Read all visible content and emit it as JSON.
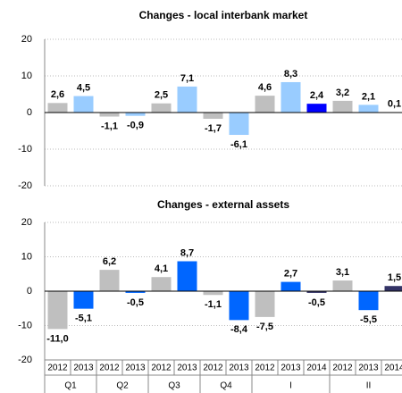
{
  "chart_data": [
    {
      "type": "bar",
      "title": "Changes - local interbank market",
      "values": [
        2.6,
        4.5,
        -1.1,
        -0.9,
        2.5,
        7.1,
        -1.7,
        -6.1,
        4.6,
        8.3,
        2.4,
        3.2,
        2.1,
        0.1
      ],
      "value_labels": [
        "2,6",
        "4,5",
        "-1,1",
        "-0,9",
        "2,5",
        "7,1",
        "-1,7",
        "-6,1",
        "4,6",
        "8,3",
        "2,4",
        "3,2",
        "2,1",
        "0,1"
      ],
      "colors": [
        "#bfbfbf",
        "#99ccff",
        "#bfbfbf",
        "#99ccff",
        "#bfbfbf",
        "#99ccff",
        "#bfbfbf",
        "#99ccff",
        "#bfbfbf",
        "#99ccff",
        "#0000ff",
        "#bfbfbf",
        "#99ccff",
        "#000080"
      ],
      "ylim": [
        -20,
        20
      ],
      "yticks": [
        -20,
        -10,
        0,
        10,
        20
      ],
      "grid": true
    },
    {
      "type": "bar",
      "title": "Changes - external assets",
      "categories": [
        "2012",
        "2013",
        "2012",
        "2013",
        "2012",
        "2013",
        "2012",
        "2013",
        "2012",
        "2013",
        "2014",
        "2012",
        "2013",
        "2014"
      ],
      "groups": [
        {
          "label": "Q1",
          "span": 2
        },
        {
          "label": "Q2",
          "span": 2
        },
        {
          "label": "Q3",
          "span": 2
        },
        {
          "label": "Q4",
          "span": 2
        },
        {
          "label": "I",
          "span": 3
        },
        {
          "label": "II",
          "span": 3
        }
      ],
      "values": [
        -11.0,
        -5.1,
        6.2,
        -0.5,
        4.1,
        8.7,
        -1.1,
        -8.4,
        -7.5,
        2.7,
        -0.5,
        3.1,
        -5.5,
        1.5
      ],
      "value_labels": [
        "-11,0",
        "-5,1",
        "6,2",
        "-0,5",
        "4,1",
        "8,7",
        "-1,1",
        "-8,4",
        "-7,5",
        "2,7",
        "-0,5",
        "3,1",
        "-5,5",
        "1,5"
      ],
      "colors": [
        "#bfbfbf",
        "#0066ff",
        "#bfbfbf",
        "#0066ff",
        "#bfbfbf",
        "#0066ff",
        "#bfbfbf",
        "#0066ff",
        "#bfbfbf",
        "#0066ff",
        "#333366",
        "#bfbfbf",
        "#0066ff",
        "#333366"
      ],
      "ylim": [
        -20,
        20
      ],
      "yticks": [
        -20,
        -10,
        0,
        10,
        20
      ],
      "grid": true
    }
  ]
}
